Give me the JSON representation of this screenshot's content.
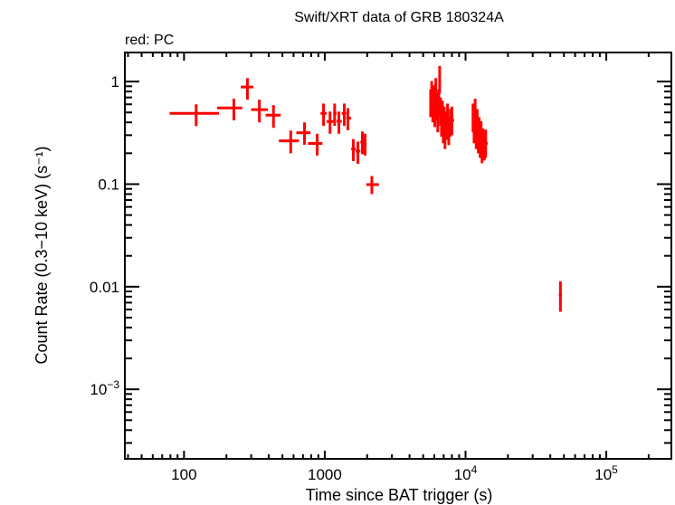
{
  "chart_data": {
    "type": "scatter",
    "title": "Swift/XRT data of GRB 180324A",
    "subtitle": "red: PC",
    "xlabel": "Time since BAT trigger (s)",
    "ylabel": "Count Rate (0.3−10 keV) (s⁻¹)",
    "xscale": "log",
    "yscale": "log",
    "xlim": [
      38,
      290000
    ],
    "ylim": [
      0.00021,
      1.92
    ],
    "grid": false,
    "x_ticks": [
      {
        "value": 100,
        "label": "100"
      },
      {
        "value": 1000,
        "label": "1000"
      },
      {
        "value": 10000,
        "label": "10",
        "exp": "4"
      },
      {
        "value": 100000,
        "label": "10",
        "exp": "5"
      }
    ],
    "y_ticks": [
      {
        "value": 1,
        "label": "1"
      },
      {
        "value": 0.1,
        "label": "0.1"
      },
      {
        "value": 0.01,
        "label": "0.01"
      },
      {
        "value": 0.001,
        "label": "10",
        "exp": "−3"
      }
    ],
    "series": [
      {
        "color": "#ff0000",
        "point_format": [
          "x",
          "x_low",
          "x_high",
          "y",
          "y_low",
          "y_high"
        ],
        "points": [
          [
            122,
            79,
            177,
            0.49,
            0.368,
            0.6
          ],
          [
            226,
            172,
            259,
            0.553,
            0.419,
            0.68
          ],
          [
            282,
            253,
            311,
            0.885,
            0.665,
            1.08
          ],
          [
            343,
            300,
            394,
            0.532,
            0.4,
            0.665
          ],
          [
            432,
            380,
            486,
            0.47,
            0.354,
            0.589
          ],
          [
            573,
            472,
            655,
            0.264,
            0.2,
            0.333
          ],
          [
            718,
            628,
            793,
            0.317,
            0.242,
            0.4
          ],
          [
            883,
            759,
            962,
            0.249,
            0.19,
            0.31
          ],
          [
            980,
            933,
            1030,
            0.49,
            0.37,
            0.61
          ],
          [
            1090,
            1030,
            1150,
            0.408,
            0.31,
            0.51
          ],
          [
            1175,
            1150,
            1215,
            0.49,
            0.37,
            0.61
          ],
          [
            1260,
            1215,
            1320,
            0.41,
            0.31,
            0.51
          ],
          [
            1376,
            1320,
            1420,
            0.49,
            0.37,
            0.61
          ],
          [
            1460,
            1420,
            1540,
            0.44,
            0.335,
            0.55
          ],
          [
            1595,
            1540,
            1660,
            0.22,
            0.168,
            0.275
          ],
          [
            1720,
            1660,
            1790,
            0.21,
            0.158,
            0.26
          ],
          [
            1850,
            1790,
            1895,
            0.257,
            0.196,
            0.326
          ],
          [
            1935,
            1895,
            1973,
            0.25,
            0.19,
            0.31
          ],
          [
            2160,
            1973,
            2425,
            0.099,
            0.08,
            0.12
          ],
          [
            5650,
            5580,
            5700,
            0.62,
            0.45,
            0.84
          ],
          [
            5750,
            5700,
            5800,
            0.75,
            0.54,
            1.01
          ],
          [
            5850,
            5800,
            5900,
            0.55,
            0.4,
            0.74
          ],
          [
            5950,
            5900,
            6000,
            0.68,
            0.49,
            0.92
          ],
          [
            6050,
            6000,
            6100,
            0.5,
            0.36,
            0.68
          ],
          [
            6150,
            6100,
            6200,
            0.8,
            0.58,
            1.08
          ],
          [
            6250,
            6200,
            6300,
            0.58,
            0.42,
            0.78
          ],
          [
            6350,
            6300,
            6400,
            0.45,
            0.32,
            0.61
          ],
          [
            6450,
            6400,
            6500,
            0.62,
            0.45,
            0.84
          ],
          [
            6550,
            6500,
            6600,
            1.05,
            0.76,
            1.42
          ],
          [
            6650,
            6600,
            6700,
            0.52,
            0.37,
            0.7
          ],
          [
            6750,
            6700,
            6800,
            0.4,
            0.29,
            0.54
          ],
          [
            6850,
            6800,
            6900,
            0.48,
            0.35,
            0.65
          ],
          [
            6950,
            6900,
            7000,
            0.35,
            0.25,
            0.47
          ],
          [
            7050,
            7000,
            7100,
            0.42,
            0.3,
            0.57
          ],
          [
            7150,
            7100,
            7220,
            0.3,
            0.22,
            0.41
          ],
          [
            7300,
            7220,
            7370,
            0.38,
            0.27,
            0.51
          ],
          [
            7450,
            7370,
            7520,
            0.45,
            0.32,
            0.61
          ],
          [
            7600,
            7520,
            7700,
            0.33,
            0.24,
            0.45
          ],
          [
            7800,
            7700,
            7900,
            0.4,
            0.29,
            0.54
          ],
          [
            8000,
            7900,
            8300,
            0.42,
            0.3,
            0.57
          ],
          [
            11300,
            11200,
            11400,
            0.45,
            0.32,
            0.61
          ],
          [
            11500,
            11400,
            11600,
            0.35,
            0.25,
            0.47
          ],
          [
            11700,
            11600,
            11800,
            0.5,
            0.36,
            0.68
          ],
          [
            11900,
            11800,
            12000,
            0.3,
            0.22,
            0.41
          ],
          [
            12100,
            12000,
            12200,
            0.4,
            0.29,
            0.54
          ],
          [
            12300,
            12200,
            12400,
            0.28,
            0.2,
            0.38
          ],
          [
            12500,
            12400,
            12600,
            0.33,
            0.24,
            0.45
          ],
          [
            12700,
            12600,
            12800,
            0.25,
            0.18,
            0.34
          ],
          [
            12900,
            12800,
            13000,
            0.3,
            0.22,
            0.41
          ],
          [
            13100,
            13000,
            13200,
            0.22,
            0.16,
            0.3
          ],
          [
            13300,
            13200,
            13450,
            0.26,
            0.19,
            0.35
          ],
          [
            13600,
            13450,
            13750,
            0.24,
            0.17,
            0.32
          ],
          [
            13900,
            13750,
            14400,
            0.25,
            0.18,
            0.34
          ],
          [
            47200,
            46000,
            48400,
            0.0083,
            0.0057,
            0.0113
          ]
        ]
      }
    ]
  }
}
